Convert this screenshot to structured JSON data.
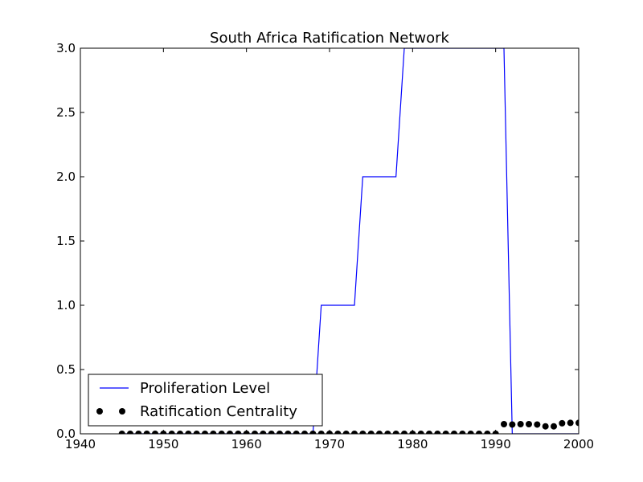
{
  "chart_data": {
    "type": "line",
    "title": "South Africa Ratification Network",
    "xlabel": "",
    "ylabel": "",
    "xlim": [
      1940,
      2000
    ],
    "ylim": [
      0,
      3.0
    ],
    "x_ticks": [
      "1940",
      "1950",
      "1960",
      "1970",
      "1980",
      "1990",
      "2000"
    ],
    "y_ticks": [
      "0.0",
      "0.5",
      "1.0",
      "1.5",
      "2.0",
      "2.5",
      "3.0"
    ],
    "grid": false,
    "legend_position": "lower-left",
    "series": [
      {
        "name": "Proliferation Level",
        "style": "line",
        "color": "#0000ff",
        "x": [
          1945,
          1968,
          1969,
          1973,
          1974,
          1978,
          1979,
          1991,
          1992,
          2000
        ],
        "y": [
          0,
          0,
          1,
          1,
          2,
          2,
          3,
          3,
          0,
          0
        ]
      },
      {
        "name": "Ratification Centrality",
        "style": "markers",
        "color": "#000000",
        "x": [
          1945,
          1946,
          1947,
          1948,
          1949,
          1950,
          1951,
          1952,
          1953,
          1954,
          1955,
          1956,
          1957,
          1958,
          1959,
          1960,
          1961,
          1962,
          1963,
          1964,
          1965,
          1966,
          1967,
          1968,
          1969,
          1970,
          1971,
          1972,
          1973,
          1974,
          1975,
          1976,
          1977,
          1978,
          1979,
          1980,
          1981,
          1982,
          1983,
          1984,
          1985,
          1986,
          1987,
          1988,
          1989,
          1990,
          1991,
          1992,
          1993,
          1994,
          1995,
          1996,
          1997,
          1998,
          1999,
          2000
        ],
        "y": [
          0,
          0,
          0,
          0,
          0,
          0,
          0,
          0,
          0,
          0,
          0,
          0,
          0,
          0,
          0,
          0,
          0,
          0,
          0,
          0,
          0,
          0,
          0,
          0,
          0,
          0,
          0,
          0,
          0,
          0,
          0,
          0,
          0,
          0,
          0,
          0,
          0,
          0,
          0,
          0,
          0,
          0,
          0,
          0,
          0,
          0,
          0.075,
          0.072,
          0.075,
          0.075,
          0.072,
          0.058,
          0.058,
          0.082,
          0.085,
          0.085
        ]
      }
    ]
  }
}
